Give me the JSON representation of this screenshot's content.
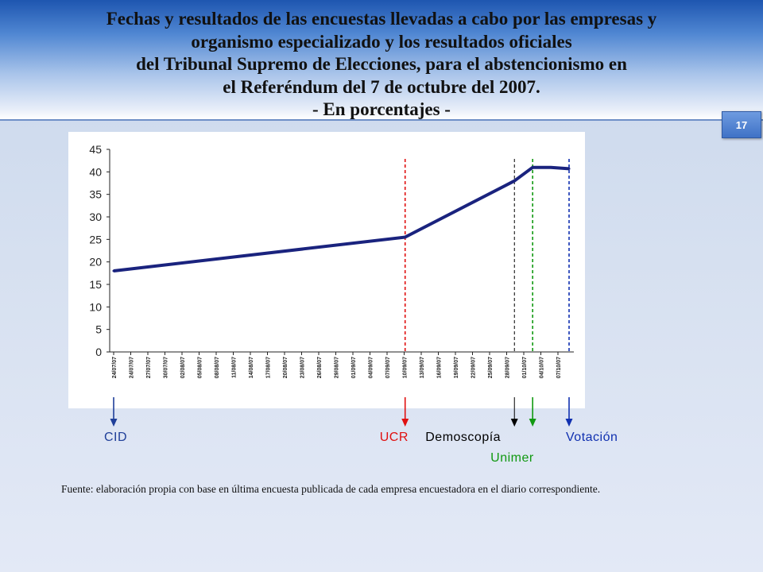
{
  "header": {
    "title_lines": [
      "Fechas y resultados de las encuestas llevadas a cabo por las empresas y",
      "organismo especializado y los resultados oficiales",
      "del Tribunal Supremo de Elecciones, para el abstencionismo en",
      "el Referéndum del 7 de octubre del 2007.",
      "- En porcentajes -"
    ],
    "slide_number": "17"
  },
  "colors": {
    "line": "#1a237e",
    "CID": "#1f3f99",
    "UCR": "#e01010",
    "Demoscopía": "#000000",
    "Unimer": "#119911",
    "Votación": "#1030b0",
    "header_gradient": [
      "#1e56b0",
      "#ffffff"
    ]
  },
  "chart_data": {
    "type": "line",
    "ylim": [
      0,
      45
    ],
    "yticks": [
      "0",
      "5",
      "10",
      "15",
      "20",
      "25",
      "30",
      "35",
      "40",
      "45"
    ],
    "grid": false,
    "x_tick_labels": [
      "24/07/07",
      "24/07/07",
      "27/07/07",
      "30/07/07",
      "02/08/07",
      "05/08/07",
      "08/08/07",
      "11/08/07",
      "14/08/07",
      "17/08/07",
      "20/08/07",
      "23/08/07",
      "26/08/07",
      "29/08/07",
      "01/09/07",
      "04/09/07",
      "07/09/07",
      "10/09/07",
      "13/09/07",
      "16/09/07",
      "19/09/07",
      "22/09/07",
      "25/09/07",
      "28/09/07",
      "01/10/07",
      "04/10/07",
      "07/10/07"
    ],
    "series": [
      {
        "x": [
          "24/07/07",
          "10/09/07",
          "28/09/07",
          "01/10/07",
          "04/10/07",
          "07/10/07"
        ],
        "y": [
          18,
          25.5,
          38,
          41,
          41,
          40.7
        ]
      }
    ],
    "markers": [
      {
        "label": "CID",
        "x": "24/07/07",
        "vline": false,
        "color": "#1f3f99"
      },
      {
        "label": "UCR",
        "x": "10/09/07",
        "vline": true,
        "color": "#e01010"
      },
      {
        "label": "Demoscopía",
        "x": "28/09/07",
        "vline": true,
        "color": "#000000"
      },
      {
        "label": "Unimer",
        "x": "01/10/07",
        "vline": true,
        "color": "#119911"
      },
      {
        "label": "Votación",
        "x": "07/10/07",
        "vline": true,
        "color": "#1030b0"
      }
    ]
  },
  "source_note": "Fuente: elaboración propia con base en última encuesta publicada de cada empresa encuestadora en el diario correspondiente."
}
